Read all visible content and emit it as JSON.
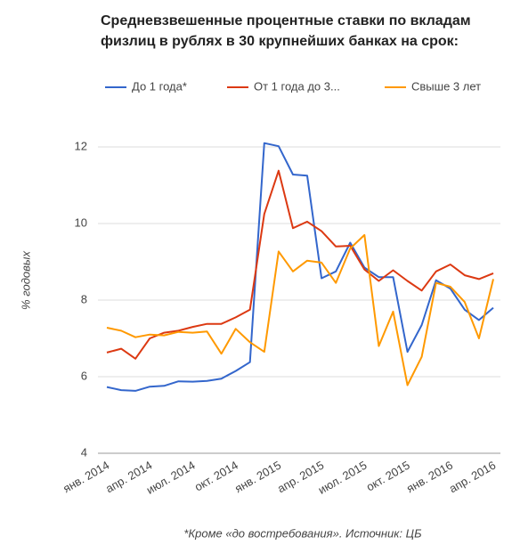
{
  "chart_data": {
    "type": "line",
    "title": "Средневзвешенные процентные ставки по вкладам физлиц в рублях в 30 крупнейших банках на срок:",
    "ylabel": "% годовых",
    "note": "*Кроме «до востребования». Источник: ЦБ",
    "categories": [
      "янв. 2014",
      null,
      null,
      "апр. 2014",
      null,
      null,
      "июл. 2014",
      null,
      null,
      "окт. 2014",
      null,
      null,
      "янв. 2015",
      null,
      null,
      "апр. 2015",
      null,
      null,
      "июл. 2015",
      null,
      null,
      "окт. 2015",
      null,
      null,
      "янв. 2016",
      null,
      null,
      "апр. 2016"
    ],
    "series": [
      {
        "name": "До 1 года*",
        "color": "#3366cc",
        "values": [
          5.73,
          5.65,
          5.63,
          5.74,
          5.76,
          5.88,
          5.87,
          5.89,
          5.95,
          6.15,
          6.38,
          12.1,
          12.02,
          11.28,
          11.25,
          8.57,
          8.75,
          9.5,
          8.85,
          8.6,
          8.6,
          6.65,
          7.35,
          8.52,
          8.3,
          7.75,
          7.48,
          7.8
        ]
      },
      {
        "name": "От 1 года до 3...",
        "color": "#dc3912",
        "values": [
          6.63,
          6.73,
          6.47,
          7.0,
          7.15,
          7.2,
          7.3,
          7.38,
          7.38,
          7.55,
          7.75,
          10.25,
          11.38,
          9.88,
          10.05,
          9.8,
          9.4,
          9.42,
          8.8,
          8.5,
          8.78,
          8.5,
          8.25,
          8.75,
          8.93,
          8.65,
          8.55,
          8.7
        ]
      },
      {
        "name": "Свыше 3 лет",
        "color": "#ff9900",
        "values": [
          7.28,
          7.2,
          7.03,
          7.1,
          7.08,
          7.17,
          7.15,
          7.18,
          6.6,
          7.25,
          6.9,
          6.65,
          9.27,
          8.75,
          9.03,
          8.98,
          8.45,
          9.35,
          9.7,
          6.8,
          7.7,
          5.78,
          6.52,
          8.45,
          8.35,
          7.95,
          7.0,
          8.55
        ]
      }
    ],
    "ylim": [
      4,
      12.35
    ],
    "yticks": [
      4,
      6,
      8,
      10,
      12
    ],
    "grid": true
  }
}
